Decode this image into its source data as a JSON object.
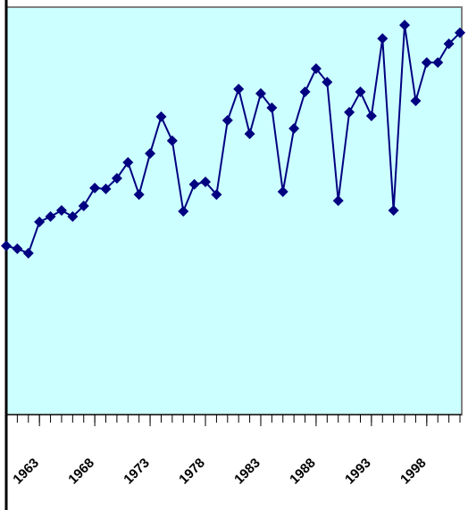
{
  "chart_data": {
    "type": "line",
    "x": [
      1960,
      1961,
      1962,
      1963,
      1964,
      1965,
      1966,
      1967,
      1968,
      1969,
      1970,
      1971,
      1972,
      1973,
      1974,
      1975,
      1976,
      1977,
      1978,
      1979,
      1980,
      1981,
      1982,
      1983,
      1984,
      1985,
      1986,
      1987,
      1988,
      1989,
      1990,
      1991,
      1992,
      1993,
      1994,
      1995,
      1996,
      1997,
      1998,
      1999,
      2000,
      2001
    ],
    "series": [
      {
        "color": "#000080",
        "values": [
          41.4,
          40.7,
          39.6,
          47.3,
          48.6,
          50.1,
          48.6,
          51.2,
          55.6,
          55.4,
          58.0,
          61.9,
          54.0,
          64.1,
          73.1,
          67.2,
          49.9,
          56.5,
          57.1,
          54.0,
          72.2,
          79.9,
          68.9,
          78.8,
          75.3,
          54.7,
          70.2,
          79.2,
          84.9,
          81.6,
          52.5,
          74.2,
          79.2,
          73.3,
          92.3,
          50.1,
          95.6,
          77.0,
          86.4,
          86.4,
          91.0,
          93.7
        ]
      }
    ],
    "xlim": [
      1960,
      2001
    ],
    "ylim": [
      0,
      100
    ],
    "xticks": [
      1963,
      1968,
      1973,
      1978,
      1983,
      1988,
      1993,
      1998
    ],
    "background": "#ccffff"
  }
}
